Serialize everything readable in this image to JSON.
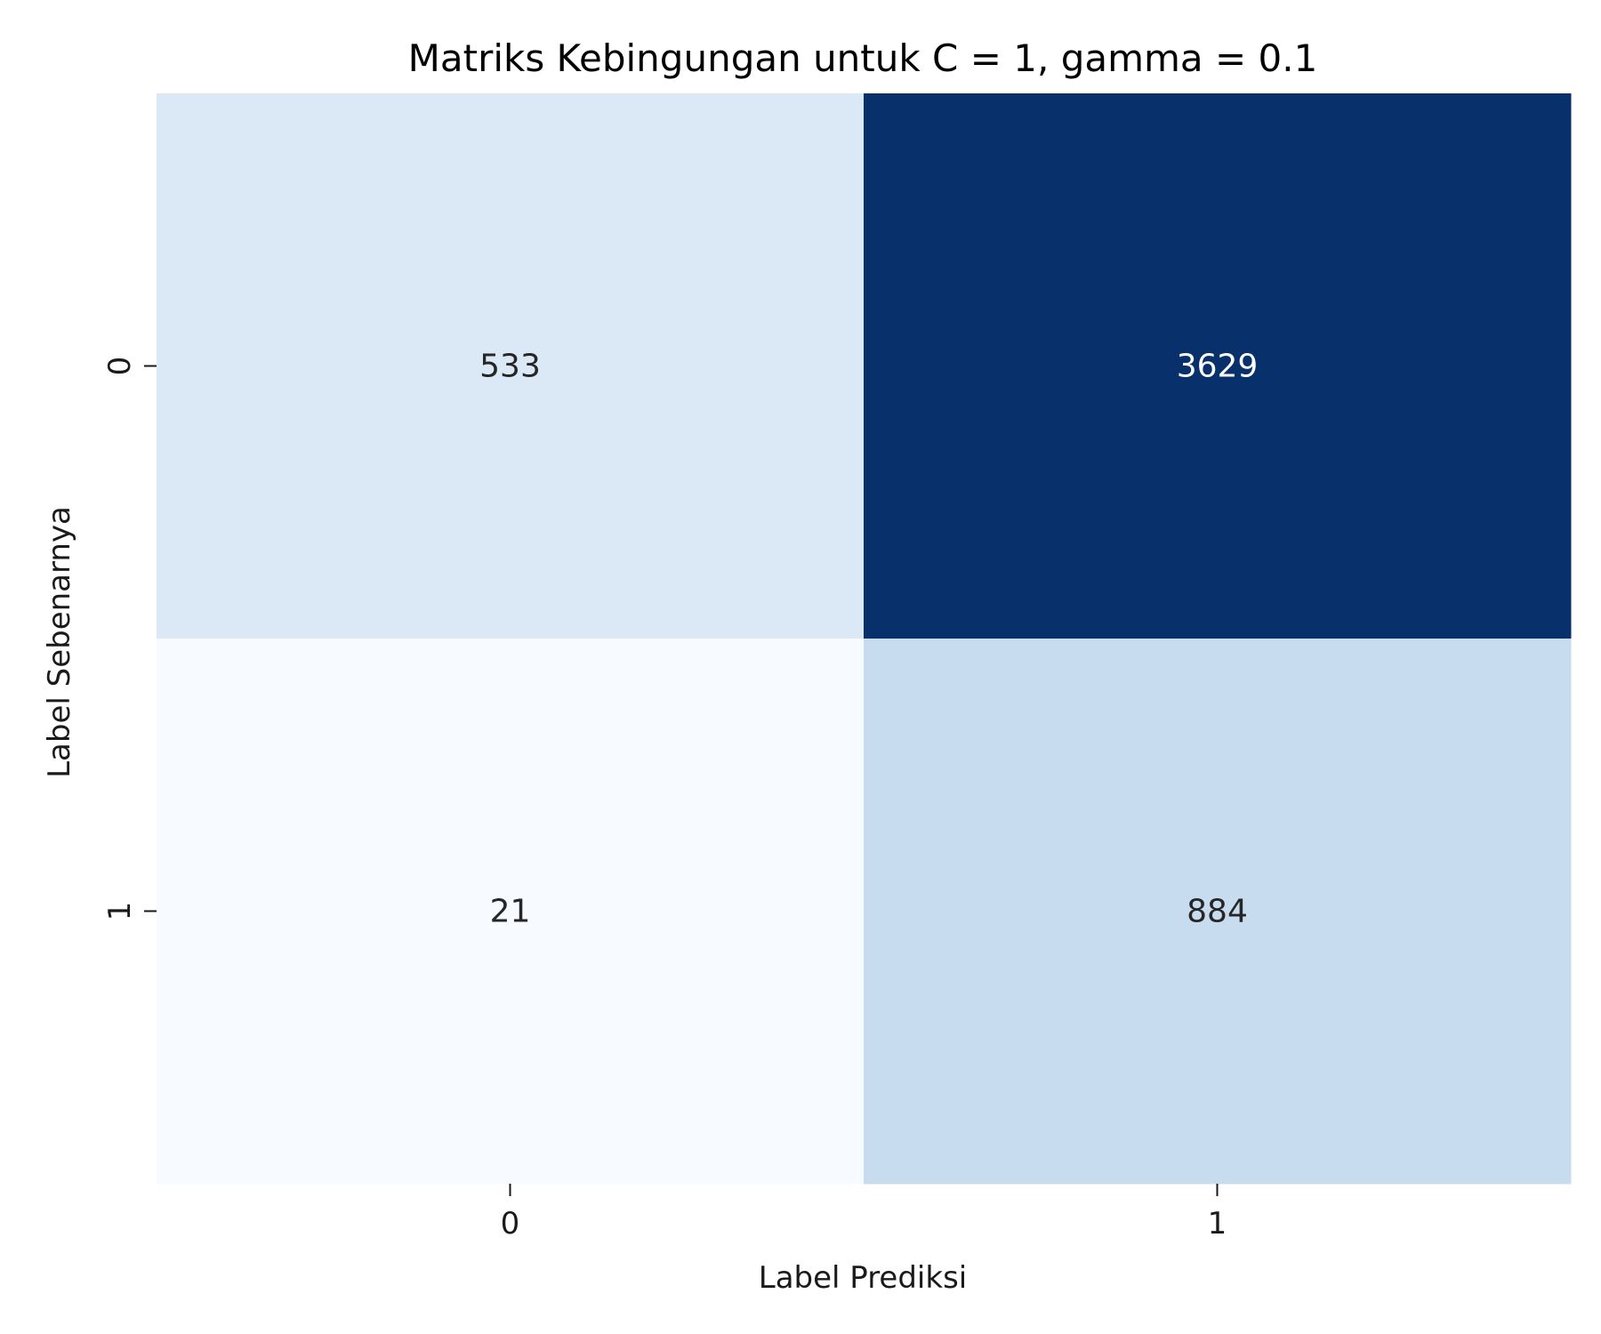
{
  "chart_data": {
    "type": "heatmap",
    "title": "Matriks Kebingungan untuk C = 1, gamma = 0.1",
    "xlabel": "Label Prediksi",
    "ylabel": "Label Sebenarnya",
    "x_categories": [
      "0",
      "1"
    ],
    "y_categories": [
      "0",
      "1"
    ],
    "values": [
      [
        533,
        3629
      ],
      [
        21,
        884
      ]
    ],
    "colormap": "Blues",
    "colorbar": false,
    "color_range": [
      21,
      3629
    ],
    "annotated": true
  }
}
